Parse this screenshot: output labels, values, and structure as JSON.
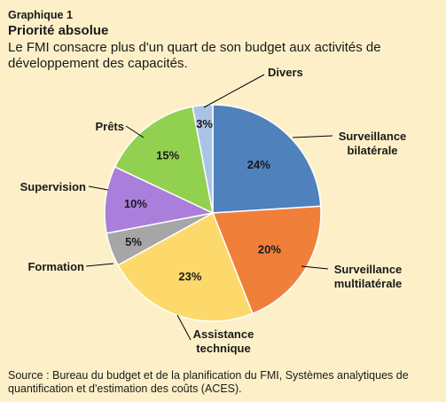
{
  "header": {
    "label": "Graphique 1",
    "title": "Priorité absolue",
    "subtitle": "Le FMI consacre plus d'un quart de son budget aux activités de développement des capacités."
  },
  "source": "Source : Bureau  du budget et de la planification du FMI, Systèmes analytiques de quantification et d'estimation des coûts (ACES).",
  "chart_data": {
    "type": "pie",
    "title": "",
    "start": "12 o'clock",
    "direction": "clockwise",
    "slices": [
      {
        "label": [
          "Surveillance",
          "bilatérale"
        ],
        "value": 24,
        "value_label": "24%",
        "color": "#4f81bd"
      },
      {
        "label": [
          "Surveillance",
          "multilatérale"
        ],
        "value": 20,
        "value_label": "20%",
        "color": "#f07f3a"
      },
      {
        "label": [
          "Assistance",
          "technique"
        ],
        "value": 23,
        "value_label": "23%",
        "color": "#fdd96b"
      },
      {
        "label": [
          "Formation"
        ],
        "value": 5,
        "value_label": "5%",
        "color": "#a6a6a6"
      },
      {
        "label": [
          "Supervision"
        ],
        "value": 10,
        "value_label": "10%",
        "color": "#a97fdb"
      },
      {
        "label": [
          "Prêts"
        ],
        "value": 15,
        "value_label": "15%",
        "color": "#92d050"
      },
      {
        "label": [
          "Divers"
        ],
        "value": 3,
        "value_label": "3%",
        "color": "#a9c3e6"
      }
    ]
  }
}
